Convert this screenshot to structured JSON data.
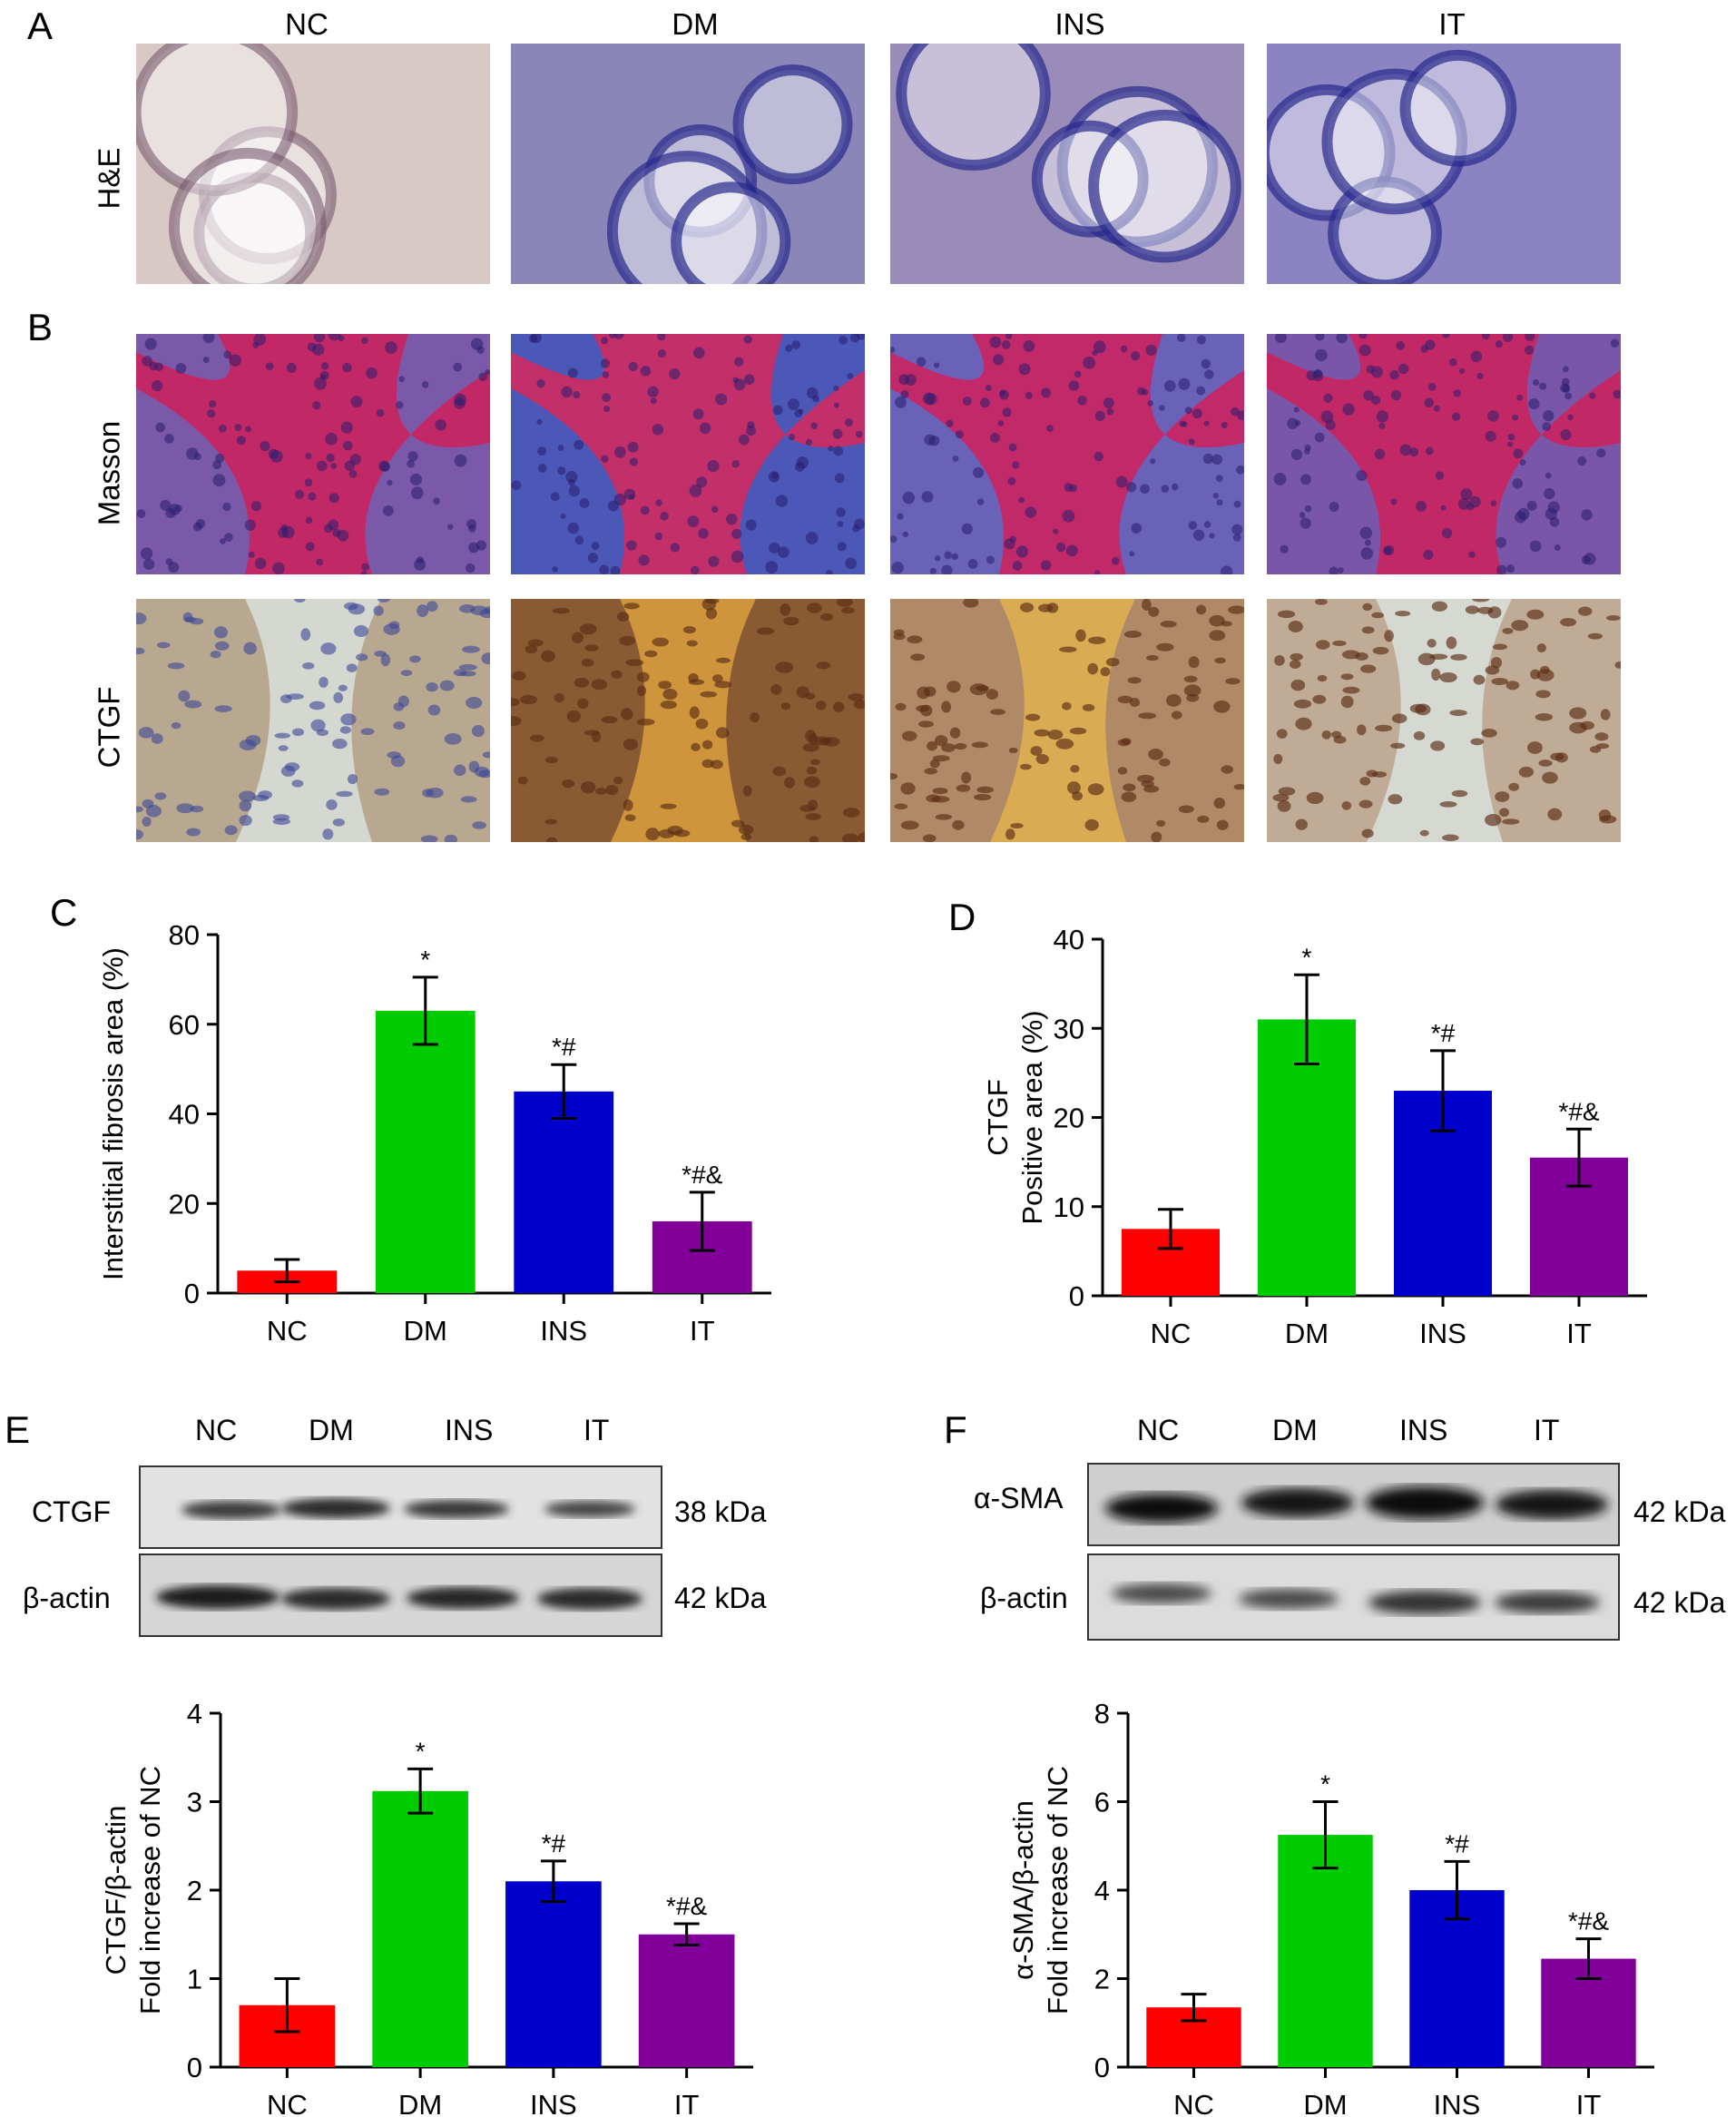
{
  "panel_letters": {
    "A": "A",
    "B": "B",
    "C": "C",
    "D": "D",
    "E": "E",
    "F": "F"
  },
  "micrograph_columns": [
    "NC",
    "DM",
    "INS",
    "IT"
  ],
  "micrograph_rows": {
    "he": "H&E",
    "masson": "Masson",
    "ctgf": "CTGF"
  },
  "stain_colors": {
    "he": [
      "#d8c9c6",
      "#8b86b8",
      "#9a8cb8",
      "#8c83c2"
    ],
    "masson": [
      "#7a5aa8",
      "#4b58b8",
      "#6a62b8",
      "#7a56a8"
    ],
    "ctgf": [
      "#b8a890",
      "#8a5a32",
      "#b08a66",
      "#c0ab96"
    ]
  },
  "blots": {
    "E": {
      "lanes": [
        "NC",
        "DM",
        "INS",
        "IT"
      ],
      "rows": [
        {
          "protein": "CTGF",
          "size": "38 kDa"
        },
        {
          "protein": "β-actin",
          "size": "42 kDa"
        }
      ]
    },
    "F": {
      "lanes": [
        "NC",
        "DM",
        "INS",
        "IT"
      ],
      "rows": [
        {
          "protein": "α-SMA",
          "size": "42 kDa"
        },
        {
          "protein": "β-actin",
          "size": "42 kDa"
        }
      ]
    }
  },
  "chart_data": [
    {
      "panel": "C",
      "type": "bar",
      "categories": [
        "NC",
        "DM",
        "INS",
        "IT"
      ],
      "values": [
        5,
        63,
        45,
        16
      ],
      "errors": [
        2.5,
        7.5,
        6,
        6.5
      ],
      "annotations": [
        "",
        "*",
        "*#",
        "*#&"
      ],
      "ylabel_lines": [
        "Interstitial fibrosis area (%)"
      ],
      "ylim": [
        0,
        80
      ],
      "yticks": [
        0,
        20,
        40,
        60,
        80
      ],
      "colors": [
        "#ff0000",
        "#00cc00",
        "#0000cc",
        "#800099"
      ]
    },
    {
      "panel": "D",
      "type": "bar",
      "categories": [
        "NC",
        "DM",
        "INS",
        "IT"
      ],
      "values": [
        7.5,
        31,
        23,
        15.5
      ],
      "errors": [
        2.2,
        5,
        4.5,
        3.2
      ],
      "annotations": [
        "",
        "*",
        "*#",
        "*#&"
      ],
      "ylabel_lines": [
        "CTGF",
        "Positive area (%)"
      ],
      "ylim": [
        0,
        40
      ],
      "yticks": [
        0,
        10,
        20,
        30,
        40
      ],
      "colors": [
        "#ff0000",
        "#00cc00",
        "#0000cc",
        "#800099"
      ]
    },
    {
      "panel": "E",
      "type": "bar",
      "categories": [
        "NC",
        "DM",
        "INS",
        "IT"
      ],
      "values": [
        0.7,
        3.12,
        2.1,
        1.5
      ],
      "errors": [
        0.3,
        0.25,
        0.23,
        0.12
      ],
      "annotations": [
        "",
        "*",
        "*#",
        "*#&"
      ],
      "ylabel_lines": [
        "CTGF/β-actin",
        "Fold increase of NC"
      ],
      "ylim": [
        0,
        4
      ],
      "yticks": [
        0,
        1,
        2,
        3,
        4
      ],
      "colors": [
        "#ff0000",
        "#00cc00",
        "#0000cc",
        "#800099"
      ]
    },
    {
      "panel": "F",
      "type": "bar",
      "categories": [
        "NC",
        "DM",
        "INS",
        "IT"
      ],
      "values": [
        1.35,
        5.25,
        4.0,
        2.45
      ],
      "errors": [
        0.3,
        0.75,
        0.65,
        0.45
      ],
      "annotations": [
        "",
        "*",
        "*#",
        "*#&"
      ],
      "ylabel_lines": [
        "α-SMA/β-actin",
        "Fold increase of NC"
      ],
      "ylim": [
        0,
        8
      ],
      "yticks": [
        0,
        2,
        4,
        6,
        8
      ],
      "colors": [
        "#ff0000",
        "#00cc00",
        "#0000cc",
        "#800099"
      ]
    }
  ]
}
